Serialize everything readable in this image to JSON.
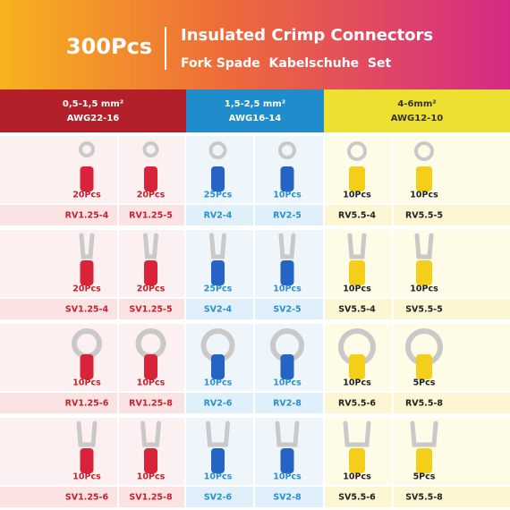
{
  "header": {
    "count": "300Pcs",
    "title": "Insulated Crimp Connectors",
    "subtitle": "Fork Spade  Kabelschuhe  Set"
  },
  "groups": [
    {
      "size": "0,5-1,5 mm²",
      "awg": "AWG22-16"
    },
    {
      "size": "1,5-2,5 mm²",
      "awg": "AWG16-14"
    },
    {
      "size": "4-6mm²",
      "awg": "AWG12-10"
    }
  ],
  "rows": [
    [
      {
        "count": "20Pcs",
        "code": "RV1.25-4"
      },
      {
        "count": "20Pcs",
        "code": "RV1.25-5"
      },
      {
        "count": "25Pcs",
        "code": "RV2-4"
      },
      {
        "count": "10Pcs",
        "code": "RV2-5"
      },
      {
        "count": "10Pcs",
        "code": "RV5.5-4"
      },
      {
        "count": "10Pcs",
        "code": "RV5.5-5"
      }
    ],
    [
      {
        "count": "20Pcs",
        "code": "SV1.25-4"
      },
      {
        "count": "20Pcs",
        "code": "SV1.25-5"
      },
      {
        "count": "25Pcs",
        "code": "SV2-4"
      },
      {
        "count": "10Pcs",
        "code": "SV2-5"
      },
      {
        "count": "10Pcs",
        "code": "SV5.5-4"
      },
      {
        "count": "10Pcs",
        "code": "SV5.5-5"
      }
    ],
    [
      {
        "count": "10Pcs",
        "code": "RV1.25-6"
      },
      {
        "count": "10Pcs",
        "code": "RV1.25-8"
      },
      {
        "count": "10Pcs",
        "code": "RV2-6"
      },
      {
        "count": "10Pcs",
        "code": "RV2-8"
      },
      {
        "count": "10Pcs",
        "code": "RV5.5-6"
      },
      {
        "count": "5Pcs",
        "code": "RV5.5-8"
      }
    ],
    [
      {
        "count": "10Pcs",
        "code": "SV1.25-6"
      },
      {
        "count": "10Pcs",
        "code": "SV1.25-8"
      },
      {
        "count": "10Pcs",
        "code": "SV2-6"
      },
      {
        "count": "10Pcs",
        "code": "SV2-8"
      },
      {
        "count": "10Pcs",
        "code": "SV5.5-6"
      },
      {
        "count": "5Pcs",
        "code": "SV5.5-8"
      }
    ]
  ]
}
